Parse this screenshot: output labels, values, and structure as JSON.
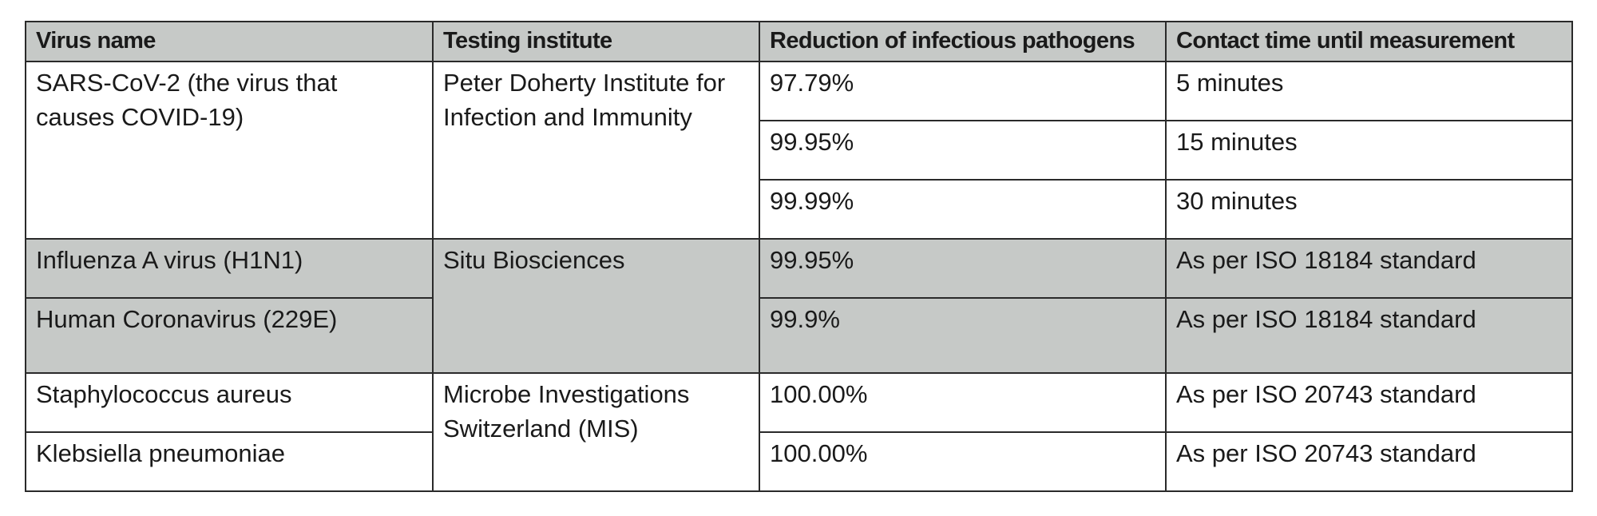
{
  "table": {
    "headers": [
      "Virus name",
      "Testing institute",
      "Reduction of infectious pathogens",
      "Contact time until measurement"
    ],
    "groups": [
      {
        "institute": "Peter Doherty Institute for Infection and Immunity",
        "virus": "SARS-CoV-2 (the virus that causes COVID-19)",
        "rows": [
          {
            "reduction": "97.79%",
            "contact_time": "5 minutes"
          },
          {
            "reduction": "99.95%",
            "contact_time": "15 minutes"
          },
          {
            "reduction": "99.99%",
            "contact_time": "30 minutes"
          }
        ]
      },
      {
        "institute": "Situ Biosciences",
        "rows": [
          {
            "virus": "Influenza A virus (H1N1)",
            "reduction": "99.95%",
            "contact_time": "As per ISO 18184 standard"
          },
          {
            "virus": "Human Coronavirus (229E)",
            "reduction": "99.9%",
            "contact_time": "As per ISO 18184 standard"
          }
        ]
      },
      {
        "institute": "Microbe Investigations Switzerland (MIS)",
        "rows": [
          {
            "virus": "Staphylococcus aureus",
            "reduction": "100.00%",
            "contact_time": "As per ISO 20743 standard"
          },
          {
            "virus": "Klebsiella pneumoniae",
            "reduction": "100.00%",
            "contact_time": "As per ISO 20743 standard"
          }
        ]
      }
    ]
  }
}
